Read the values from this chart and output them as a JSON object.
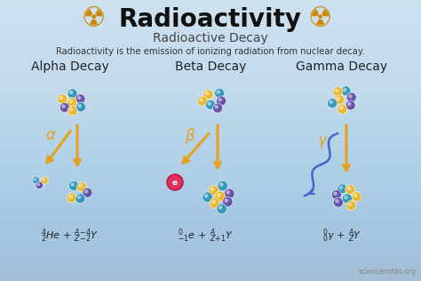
{
  "bg_color_top": "#e8eef5",
  "bg_color": "#c5dced",
  "title": "Radioactivity",
  "subtitle": "Radioactive Decay",
  "description": "Radioactivity is the emission of ionizing radiation from nuclear decay.",
  "title_color": "#111111",
  "subtitle_color": "#444444",
  "desc_color": "#333333",
  "sections": [
    "Alpha Decay",
    "Beta Decay",
    "Gamma Decay"
  ],
  "section_color": "#222222",
  "arrow_color": "#e8a020",
  "nucleus_color1": "#3399bb",
  "nucleus_color2": "#e8b830",
  "nucleus_color3": "#6655aa",
  "watermark": "sciencenotes.org",
  "radiation_symbol": "☢",
  "fig_width": 4.74,
  "fig_height": 3.16,
  "dpi": 100
}
